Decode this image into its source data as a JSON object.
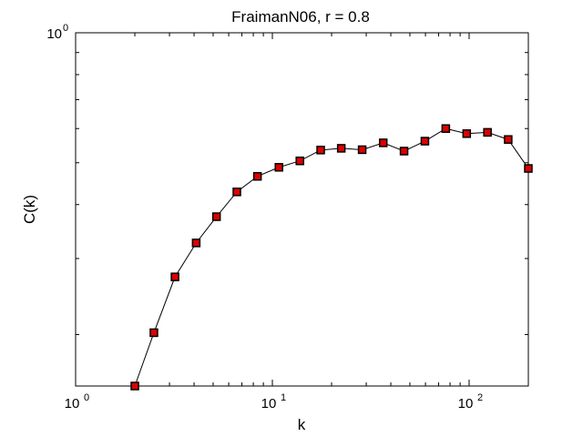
{
  "chart_data": {
    "type": "line",
    "title": "FraimanN06, r = 0.8",
    "xlabel": "k",
    "ylabel": "C(k)",
    "xscale": "log",
    "yscale": "log",
    "xlim": [
      1,
      200
    ],
    "ylim": [
      0.152,
      1.0
    ],
    "grid": false,
    "legend": "none",
    "x_ticks": [
      {
        "value": 1,
        "base": "10",
        "exp": "0"
      },
      {
        "value": 10,
        "base": "10",
        "exp": "1"
      },
      {
        "value": 100,
        "base": "10",
        "exp": "2"
      }
    ],
    "y_ticks": [
      {
        "value": 1,
        "base": "10",
        "exp": "0"
      }
    ],
    "series": [
      {
        "marker": "square",
        "color": "#dd0000",
        "line_color": "#000000",
        "x": [
          2,
          2.5,
          3.2,
          4.1,
          5.2,
          6.6,
          8.4,
          10.8,
          13.8,
          17.6,
          22.4,
          28.6,
          36.6,
          46.7,
          59.6,
          76.1,
          97.2,
          124,
          158,
          200
        ],
        "y": [
          0.152,
          0.202,
          0.272,
          0.326,
          0.375,
          0.428,
          0.465,
          0.488,
          0.505,
          0.535,
          0.54,
          0.536,
          0.556,
          0.532,
          0.561,
          0.6,
          0.584,
          0.588,
          0.566,
          0.485
        ]
      }
    ]
  }
}
